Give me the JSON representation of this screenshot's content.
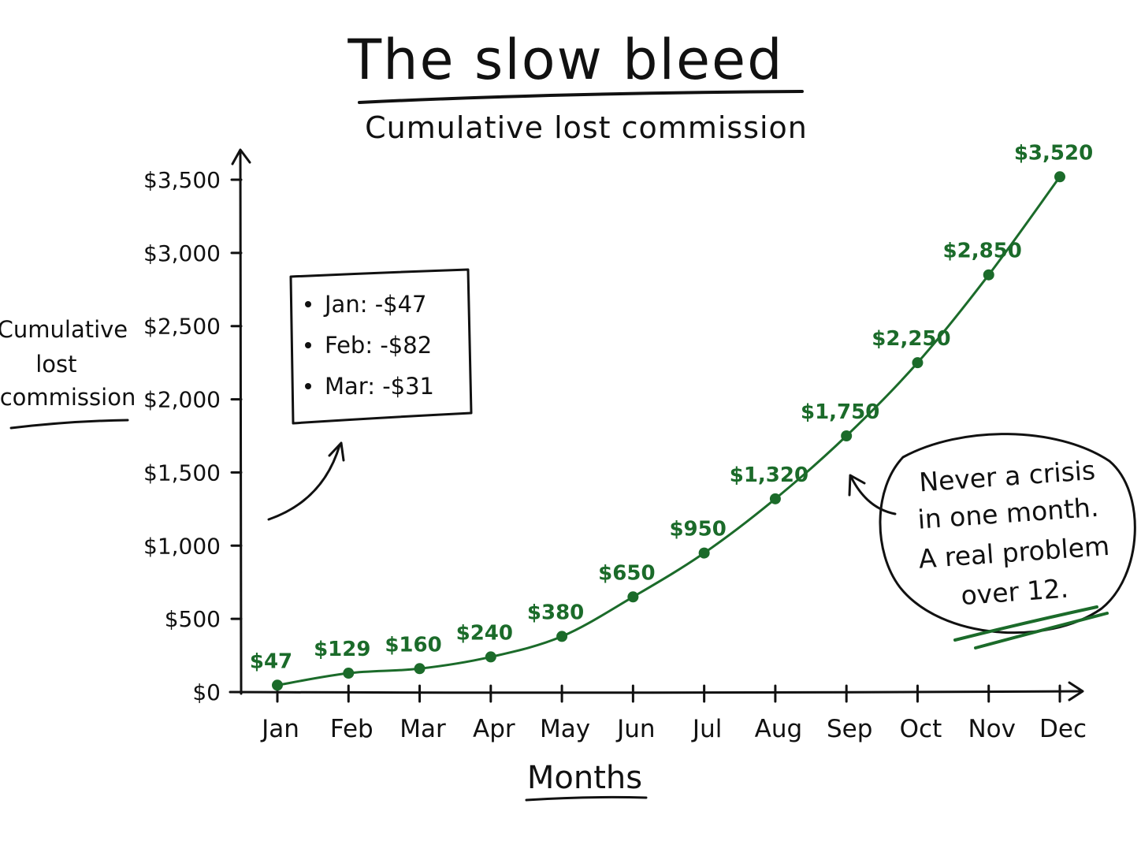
{
  "chart_data": {
    "type": "line",
    "title": "The slow bleed",
    "subtitle": "Cumulative lost commission",
    "xlabel": "Months",
    "ylabel": "Cumulative lost commission",
    "categories": [
      "Jan",
      "Feb",
      "Mar",
      "Apr",
      "May",
      "Jun",
      "Jul",
      "Aug",
      "Sep",
      "Oct",
      "Nov",
      "Dec"
    ],
    "series": [
      {
        "values": [
          47,
          129,
          160,
          240,
          380,
          650,
          950,
          1320,
          1750,
          2250,
          2850,
          3520
        ],
        "data_labels": [
          "$47",
          "$129",
          "$160",
          "$240",
          "$380",
          "$650",
          "$950",
          "$1,320",
          "$1,750",
          "$2,250",
          "$2,850",
          "$3,520"
        ],
        "color": "#1b6b2a"
      }
    ],
    "yticks": [
      0,
      500,
      1000,
      1500,
      2000,
      2500,
      3000,
      3500
    ],
    "ytick_labels": [
      "$0",
      "$500",
      "$1,000",
      "$1,500",
      "$2,000",
      "$2,500",
      "$3,000",
      "$3,500"
    ],
    "ylim": [
      0,
      3500
    ],
    "grid": false,
    "legend": "none",
    "annotations": {
      "monthly_box": [
        "Jan: -$47",
        "Feb: -$82",
        "Mar: -$31"
      ],
      "callout": [
        "Never a crisis",
        "in one month.",
        "A real problem",
        "over 12."
      ]
    }
  },
  "colors": {
    "ink": "#111111",
    "accent": "#1b6b2a"
  }
}
